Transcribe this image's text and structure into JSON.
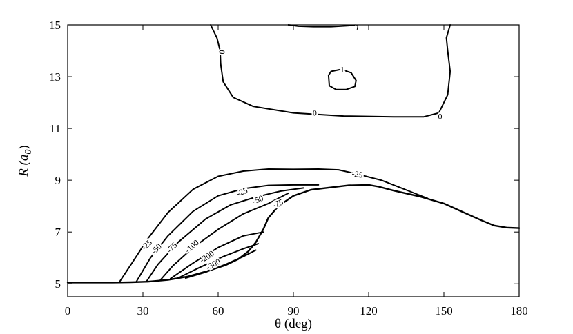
{
  "chart_data": {
    "type": "line",
    "title": "",
    "xlabel": "θ (deg)",
    "ylabel_main": "R (a",
    "ylabel_sub": "0",
    "ylabel_close": ")",
    "xlim": [
      0,
      180
    ],
    "ylim": [
      4.5,
      15
    ],
    "xticks": [
      "0",
      "30",
      "60",
      "90",
      "120",
      "150",
      "180"
    ],
    "yticks": [
      "5",
      "7",
      "9",
      "11",
      "13",
      "15"
    ],
    "grid": false,
    "line_color": "#000000",
    "series": [
      {
        "label": "0",
        "points": [
          [
            57,
            15
          ],
          [
            59.5,
            14.5
          ],
          [
            60.8,
            14
          ],
          [
            61,
            13.5
          ],
          [
            62,
            12.8
          ],
          [
            66,
            12.2
          ],
          [
            74,
            11.85
          ],
          [
            90,
            11.6
          ],
          [
            110,
            11.48
          ],
          [
            130,
            11.45
          ],
          [
            142,
            11.45
          ],
          [
            148,
            11.6
          ],
          [
            151.5,
            12.3
          ],
          [
            152.5,
            13.2
          ],
          [
            151.5,
            14
          ],
          [
            151,
            14.5
          ],
          [
            152.5,
            15
          ]
        ]
      },
      {
        "label": "1",
        "points": [
          [
            104,
            13.05
          ],
          [
            104.3,
            12.65
          ],
          [
            107,
            12.5
          ],
          [
            111,
            12.5
          ],
          [
            114.5,
            12.62
          ],
          [
            115,
            12.85
          ],
          [
            113,
            13.15
          ],
          [
            109,
            13.28
          ],
          [
            105,
            13.2
          ],
          [
            104,
            13.05
          ]
        ]
      },
      {
        "label": "1",
        "points": [
          [
            88,
            15
          ],
          [
            92,
            14.95
          ],
          [
            98,
            14.93
          ],
          [
            105,
            14.93
          ],
          [
            112,
            14.97
          ],
          [
            116,
            15
          ]
        ]
      },
      {
        "label": "-25",
        "points": [
          [
            20.5,
            5.05
          ],
          [
            27,
            6
          ],
          [
            32,
            6.75
          ],
          [
            40,
            7.75
          ],
          [
            50,
            8.65
          ],
          [
            60,
            9.15
          ],
          [
            70,
            9.35
          ],
          [
            80,
            9.43
          ],
          [
            90,
            9.42
          ],
          [
            100,
            9.43
          ],
          [
            108,
            9.4
          ],
          [
            115,
            9.25
          ],
          [
            125,
            9
          ],
          [
            133,
            8.7
          ],
          [
            139,
            8.47
          ],
          [
            143.5,
            8.3
          ]
        ]
      },
      {
        "label": "-50",
        "points": [
          [
            27.5,
            5.1
          ],
          [
            33,
            6
          ],
          [
            40,
            6.85
          ],
          [
            50,
            7.8
          ],
          [
            60,
            8.4
          ],
          [
            70,
            8.67
          ],
          [
            80,
            8.8
          ],
          [
            90,
            8.82
          ],
          [
            100,
            8.82
          ]
        ]
      },
      {
        "label": "-75",
        "points": [
          [
            31.5,
            5.1
          ],
          [
            36,
            5.75
          ],
          [
            44,
            6.6
          ],
          [
            55,
            7.5
          ],
          [
            65,
            8.05
          ],
          [
            75,
            8.35
          ],
          [
            85,
            8.58
          ],
          [
            94,
            8.7
          ]
        ]
      },
      {
        "label": "-100",
        "points": [
          [
            37,
            5.15
          ],
          [
            42,
            5.7
          ],
          [
            50,
            6.4
          ],
          [
            60,
            7.1
          ],
          [
            70,
            7.7
          ],
          [
            80,
            8.1
          ],
          [
            88,
            8.5
          ]
        ]
      },
      {
        "label": "",
        "points": [
          [
            41,
            5.2
          ],
          [
            50,
            5.8
          ],
          [
            60,
            6.4
          ],
          [
            70,
            6.85
          ],
          [
            78,
            7
          ]
        ]
      },
      {
        "label": "-200",
        "points": [
          [
            44,
            5.22
          ],
          [
            52,
            5.6
          ],
          [
            62,
            6.05
          ],
          [
            70,
            6.35
          ],
          [
            76,
            6.55
          ]
        ]
      },
      {
        "label": "-300",
        "points": [
          [
            47,
            5.22
          ],
          [
            55,
            5.45
          ],
          [
            63,
            5.75
          ],
          [
            70,
            6.05
          ],
          [
            75,
            6.3
          ]
        ]
      },
      {
        "label": "",
        "points": [
          [
            0,
            5.05
          ],
          [
            18,
            5.05
          ],
          [
            25,
            5.06
          ],
          [
            32,
            5.08
          ],
          [
            40,
            5.15
          ],
          [
            48,
            5.28
          ],
          [
            56,
            5.5
          ],
          [
            63,
            5.72
          ],
          [
            68,
            5.95
          ],
          [
            72,
            6.25
          ],
          [
            75,
            6.6
          ],
          [
            78,
            7.1
          ],
          [
            80,
            7.55
          ],
          [
            84,
            8
          ],
          [
            90,
            8.4
          ],
          [
            97,
            8.63
          ],
          [
            105,
            8.72
          ],
          [
            112,
            8.8
          ],
          [
            120,
            8.82
          ],
          [
            124,
            8.75
          ],
          [
            130,
            8.6
          ],
          [
            140,
            8.38
          ],
          [
            150,
            8.1
          ],
          [
            158,
            7.75
          ],
          [
            165,
            7.45
          ],
          [
            170,
            7.25
          ],
          [
            175,
            7.17
          ],
          [
            180,
            7.15
          ]
        ]
      }
    ],
    "labels": [
      {
        "text": "0",
        "x": 61.5,
        "y": 13.95,
        "rot": -85
      },
      {
        "text": "0",
        "x": 98.5,
        "y": 11.6,
        "rot": 0
      },
      {
        "text": "0",
        "x": 148.5,
        "y": 11.47,
        "rot": 0
      },
      {
        "text": "1",
        "x": 109.5,
        "y": 13.28,
        "rot": 0
      },
      {
        "text": "1",
        "x": 115.5,
        "y": 14.9,
        "rot": 10
      },
      {
        "text": "-25",
        "x": 69.5,
        "y": 8.55,
        "rot": -22
      },
      {
        "text": "-25",
        "x": 115.5,
        "y": 9.23,
        "rot": 10
      },
      {
        "text": "-50",
        "x": 75.8,
        "y": 8.25,
        "rot": -22
      },
      {
        "text": "-75",
        "x": 83.7,
        "y": 8.1,
        "rot": -22
      },
      {
        "text": "-25",
        "x": 31.5,
        "y": 6.5,
        "rot": -45
      },
      {
        "text": "-50",
        "x": 35.3,
        "y": 6.35,
        "rot": -45
      },
      {
        "text": "-75",
        "x": 41.5,
        "y": 6.4,
        "rot": -45
      },
      {
        "text": "-100",
        "x": 49.5,
        "y": 6.45,
        "rot": -40
      },
      {
        "text": "-200",
        "x": 55.5,
        "y": 6.05,
        "rot": -33
      },
      {
        "text": "-300",
        "x": 58,
        "y": 5.75,
        "rot": -28
      }
    ]
  }
}
